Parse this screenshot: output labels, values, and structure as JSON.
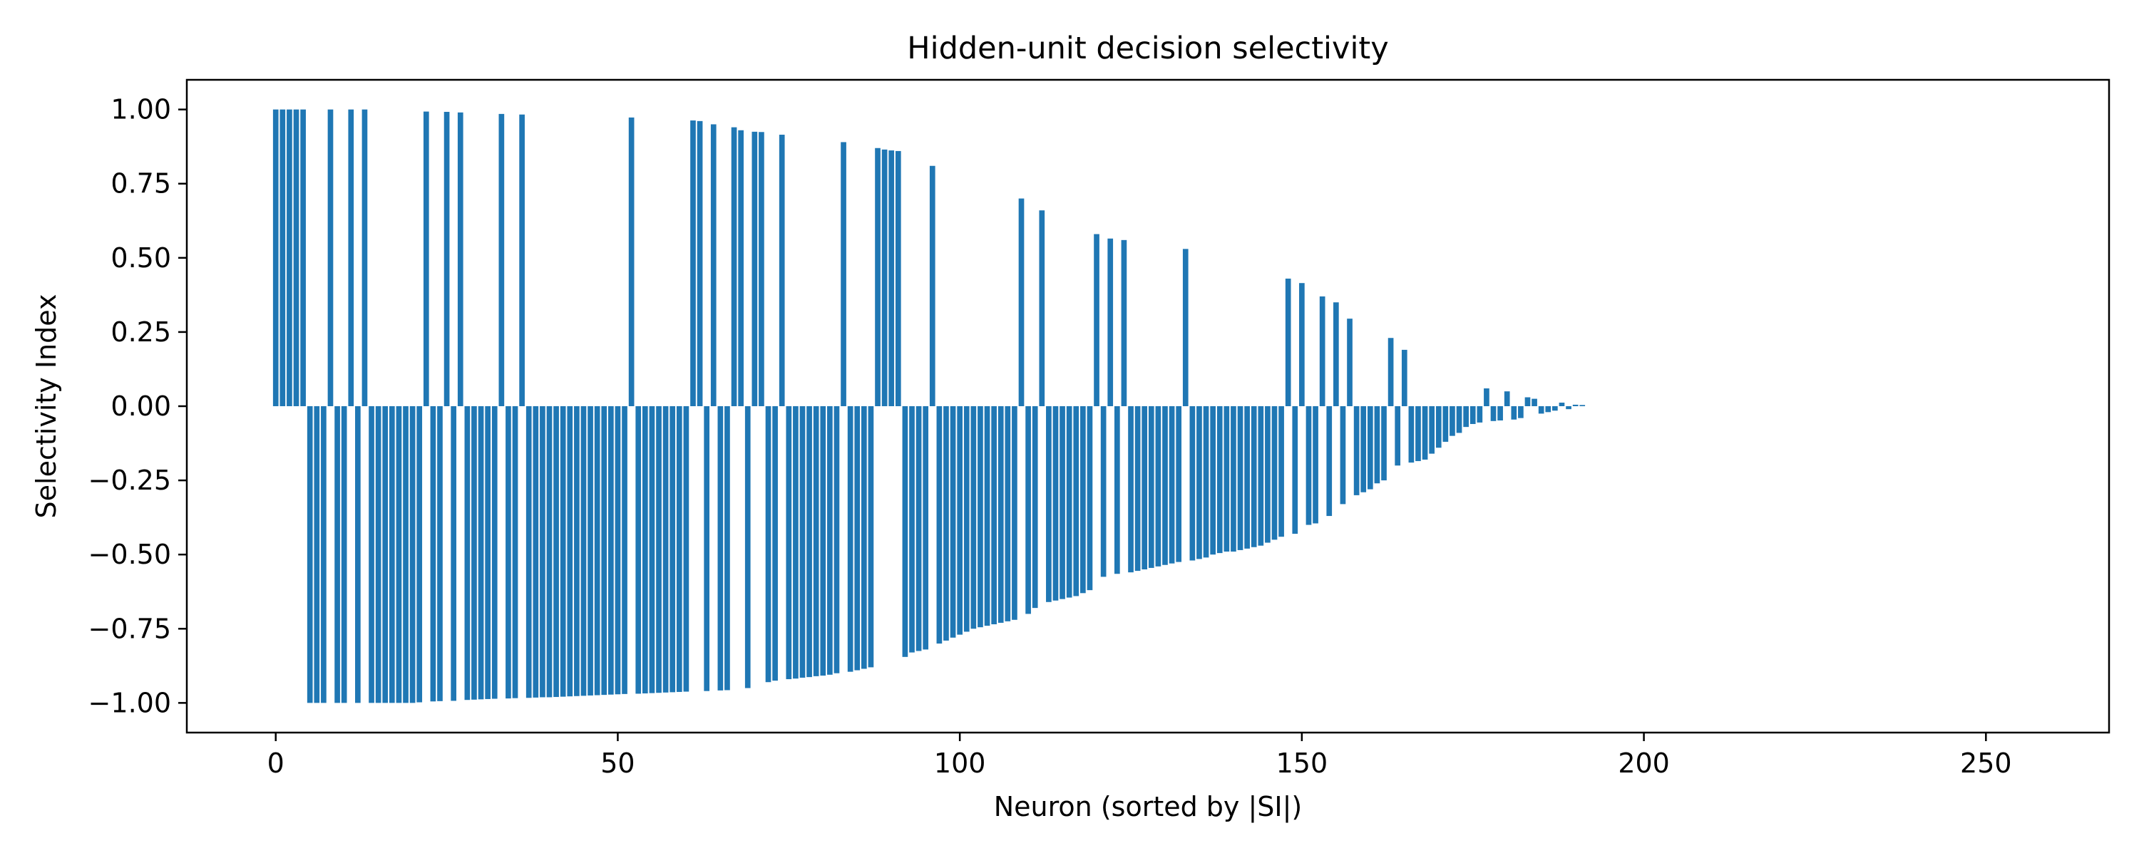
{
  "chart_data": {
    "type": "bar",
    "title": "Hidden-unit decision selectivity",
    "xlabel": "Neuron (sorted by |SI|)",
    "ylabel": "Selectivity Index",
    "xlim": [
      -13,
      268
    ],
    "ylim": [
      -1.1,
      1.1
    ],
    "xticks": [
      0,
      50,
      100,
      150,
      200,
      250
    ],
    "xtick_labels": [
      "0",
      "50",
      "100",
      "150",
      "200",
      "250"
    ],
    "yticks": [
      1.0,
      0.75,
      0.5,
      0.25,
      0.0,
      -0.25,
      -0.5,
      -0.75,
      -1.0
    ],
    "ytick_labels": [
      "1.00",
      "0.75",
      "0.50",
      "0.25",
      "0.00",
      "−0.25",
      "−0.50",
      "−0.75",
      "−1.00"
    ],
    "bar_color": "#1f77b4",
    "bar_width": 0.8,
    "grid": false,
    "legend": "none",
    "x": [
      0,
      1,
      2,
      3,
      4,
      5,
      6,
      7,
      8,
      9,
      10,
      11,
      12,
      13,
      14,
      15,
      16,
      17,
      18,
      19,
      20,
      21,
      22,
      23,
      24,
      25,
      26,
      27,
      28,
      29,
      30,
      31,
      32,
      33,
      34,
      35,
      36,
      37,
      38,
      39,
      40,
      41,
      42,
      43,
      44,
      45,
      46,
      47,
      48,
      49,
      50,
      51,
      52,
      53,
      54,
      55,
      56,
      57,
      58,
      59,
      60,
      61,
      62,
      63,
      64,
      65,
      66,
      67,
      68,
      69,
      70,
      71,
      72,
      73,
      74,
      75,
      76,
      77,
      78,
      79,
      80,
      81,
      82,
      83,
      84,
      85,
      86,
      87,
      88,
      89,
      90,
      91,
      92,
      93,
      94,
      95,
      96,
      97,
      98,
      99,
      100,
      101,
      102,
      103,
      104,
      105,
      106,
      107,
      108,
      109,
      110,
      111,
      112,
      113,
      114,
      115,
      116,
      117,
      118,
      119,
      120,
      121,
      122,
      123,
      124,
      125,
      126,
      127,
      128,
      129,
      130,
      131,
      132,
      133,
      134,
      135,
      136,
      137,
      138,
      139,
      140,
      141,
      142,
      143,
      144,
      145,
      146,
      147,
      148,
      149,
      150,
      151,
      152,
      153,
      154,
      155,
      156,
      157,
      158,
      159,
      160,
      161,
      162,
      163,
      164,
      165,
      166,
      167,
      168,
      169,
      170,
      171,
      172,
      173,
      174,
      175,
      176,
      177,
      178,
      179,
      180,
      181,
      182,
      183,
      184,
      185,
      186,
      187,
      188,
      189,
      190,
      191
    ],
    "values": [
      1.0,
      1.0,
      1.0,
      1.0,
      1.0,
      -1.0,
      -1.0,
      -1.0,
      1.0,
      -1.0,
      -1.0,
      1.0,
      -1.0,
      1.0,
      -1.0,
      -1.0,
      -1.0,
      -1.0,
      -1.0,
      -1.0,
      -1.0,
      -0.998,
      0.993,
      -0.995,
      -0.994,
      0.992,
      -0.993,
      0.99,
      -0.99,
      -0.989,
      -0.988,
      -0.987,
      -0.986,
      0.985,
      -0.985,
      -0.984,
      0.983,
      -0.983,
      -0.982,
      -0.981,
      -0.981,
      -0.98,
      -0.979,
      -0.978,
      -0.977,
      -0.976,
      -0.975,
      -0.974,
      -0.973,
      -0.972,
      -0.971,
      -0.97,
      0.973,
      -0.969,
      -0.968,
      -0.967,
      -0.966,
      -0.965,
      -0.964,
      -0.963,
      -0.962,
      0.963,
      0.961,
      -0.96,
      0.95,
      -0.958,
      -0.957,
      0.94,
      0.93,
      -0.95,
      0.925,
      0.924,
      -0.93,
      -0.925,
      0.915,
      -0.92,
      -0.918,
      -0.915,
      -0.913,
      -0.91,
      -0.908,
      -0.905,
      -0.9,
      0.89,
      -0.895,
      -0.89,
      -0.885,
      -0.88,
      0.87,
      0.865,
      0.862,
      0.86,
      -0.845,
      -0.83,
      -0.825,
      -0.82,
      0.81,
      -0.8,
      -0.79,
      -0.78,
      -0.77,
      -0.76,
      -0.75,
      -0.745,
      -0.74,
      -0.735,
      -0.73,
      -0.725,
      -0.72,
      0.7,
      -0.7,
      -0.68,
      0.66,
      -0.66,
      -0.655,
      -0.65,
      -0.645,
      -0.64,
      -0.63,
      -0.62,
      0.58,
      -0.575,
      0.565,
      -0.565,
      0.56,
      -0.56,
      -0.555,
      -0.55,
      -0.545,
      -0.54,
      -0.535,
      -0.53,
      -0.525,
      0.53,
      -0.52,
      -0.515,
      -0.51,
      -0.5,
      -0.495,
      -0.49,
      -0.49,
      -0.485,
      -0.48,
      -0.475,
      -0.47,
      -0.46,
      -0.45,
      -0.44,
      0.43,
      -0.43,
      0.415,
      -0.4,
      -0.395,
      0.37,
      -0.37,
      0.35,
      -0.33,
      0.295,
      -0.3,
      -0.29,
      -0.28,
      -0.26,
      -0.25,
      0.23,
      -0.2,
      0.19,
      -0.19,
      -0.185,
      -0.18,
      -0.16,
      -0.14,
      -0.12,
      -0.1,
      -0.09,
      -0.07,
      -0.06,
      -0.055,
      0.06,
      -0.05,
      -0.048,
      0.05,
      -0.045,
      -0.04,
      0.03,
      0.025,
      -0.025,
      -0.02,
      -0.015,
      0.012,
      -0.01,
      0.005,
      0.004
    ]
  }
}
